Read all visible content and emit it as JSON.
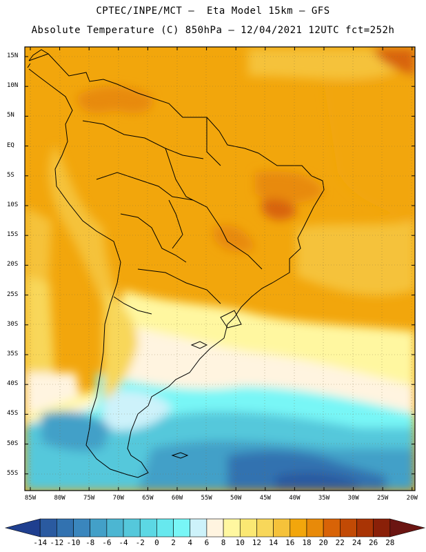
{
  "header": {
    "line1": "CPTEC/INPE/MCT –  Eta Model 15km – GFS",
    "line2": "Absolute Temperature (C) 850hPa – 12/04/2021 12UTC fct=252h"
  },
  "map": {
    "lat_labels": [
      "15N",
      "10N",
      "5N",
      "EQ",
      "5S",
      "10S",
      "15S",
      "20S",
      "25S",
      "30S",
      "35S",
      "40S",
      "45S",
      "50S",
      "55S"
    ],
    "lon_labels": [
      "85W",
      "80W",
      "75W",
      "70W",
      "65W",
      "60W",
      "55W",
      "50W",
      "45W",
      "40W",
      "35W",
      "30W",
      "25W",
      "20W"
    ]
  },
  "colorbar": {
    "labels": [
      "-14",
      "-12",
      "-10",
      "-8",
      "-6",
      "-4",
      "-2",
      "0",
      "2",
      "4",
      "6",
      "8",
      "10",
      "12",
      "14",
      "16",
      "18",
      "20",
      "22",
      "24",
      "26",
      "28"
    ],
    "colors": [
      "#1f3f8f",
      "#2a5aa0",
      "#3272b0",
      "#3a86bd",
      "#43a0c8",
      "#4cb6d2",
      "#55c8db",
      "#5cd8e4",
      "#67e8ee",
      "#78f6f6",
      "#cdf2fa",
      "#fff4e0",
      "#fff7a0",
      "#fbe873",
      "#f8d75a",
      "#f5c23a",
      "#f2a60c",
      "#e88a09",
      "#d86307",
      "#c24a05",
      "#a93405",
      "#8a2008",
      "#6b1512"
    ]
  }
}
